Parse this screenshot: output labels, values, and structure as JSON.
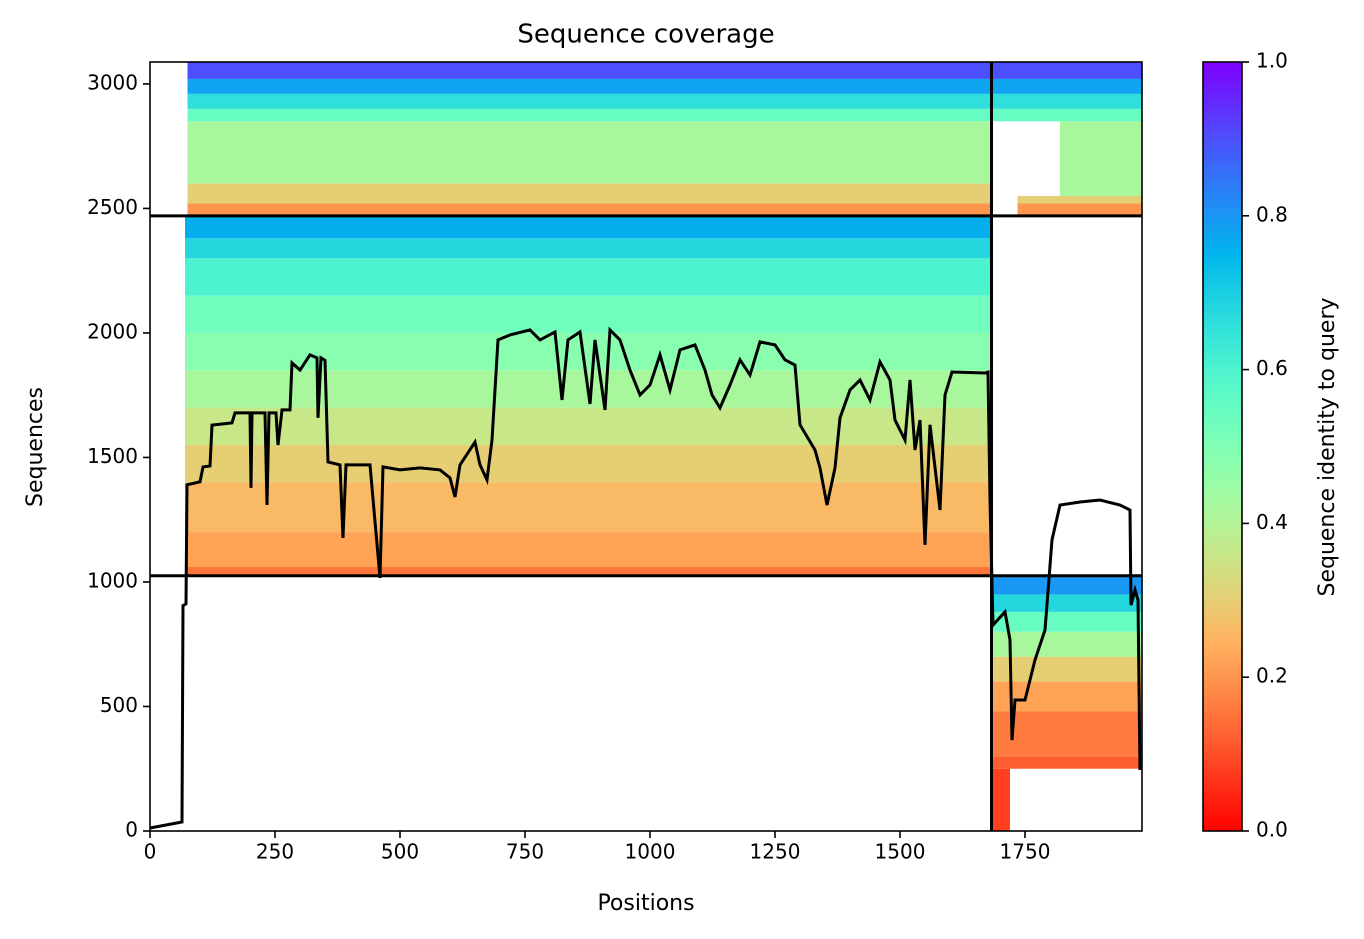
{
  "chart_data": {
    "type": "heatmap",
    "title": "Sequence coverage",
    "xlabel": "Positions",
    "ylabel": "Sequences",
    "colorbar_label": "Sequence identity to query",
    "colormap": "rainbow_r",
    "xlim": [
      0,
      1984
    ],
    "ylim": [
      0,
      3088
    ],
    "xticks": [
      0,
      250,
      500,
      750,
      1000,
      1250,
      1500,
      1750
    ],
    "yticks": [
      0,
      500,
      1000,
      1500,
      2000,
      2500,
      3000
    ],
    "clim": [
      0,
      1
    ],
    "cticks": [
      {
        "value": 0,
        "label": "0.0"
      },
      {
        "value": 0.2,
        "label": "0.2"
      },
      {
        "value": 0.4,
        "label": "0.4"
      },
      {
        "value": 0.6,
        "label": "0.6"
      },
      {
        "value": 0.8,
        "label": "0.8"
      },
      {
        "value": 1,
        "label": "1.0"
      }
    ],
    "dividers": {
      "x": [
        1683
      ],
      "y": [
        1025,
        2470
      ]
    },
    "cells": [
      {
        "x": [
          75,
          1683
        ],
        "y": [
          2470,
          2520
        ],
        "identity": 0.2
      },
      {
        "x": [
          75,
          1683
        ],
        "y": [
          2520,
          2600
        ],
        "identity": 0.3
      },
      {
        "x": [
          75,
          1683
        ],
        "y": [
          2600,
          2850
        ],
        "identity": 0.42
      },
      {
        "x": [
          75,
          1683
        ],
        "y": [
          2850,
          2900
        ],
        "identity": 0.55
      },
      {
        "x": [
          75,
          1683
        ],
        "y": [
          2900,
          2960
        ],
        "identity": 0.66
      },
      {
        "x": [
          75,
          1683
        ],
        "y": [
          2960,
          3020
        ],
        "identity": 0.78
      },
      {
        "x": [
          75,
          1683
        ],
        "y": [
          3020,
          3088
        ],
        "identity": 0.9
      },
      {
        "x": [
          1735,
          1984
        ],
        "y": [
          2470,
          2520
        ],
        "identity": 0.2
      },
      {
        "x": [
          1735,
          1984
        ],
        "y": [
          2520,
          2550
        ],
        "identity": 0.3
      },
      {
        "x": [
          1820,
          1984
        ],
        "y": [
          2550,
          2850
        ],
        "identity": 0.42
      },
      {
        "x": [
          1683,
          1984
        ],
        "y": [
          2850,
          2900
        ],
        "identity": 0.55
      },
      {
        "x": [
          1683,
          1984
        ],
        "y": [
          2900,
          2960
        ],
        "identity": 0.66
      },
      {
        "x": [
          1683,
          1984
        ],
        "y": [
          2960,
          3020
        ],
        "identity": 0.78
      },
      {
        "x": [
          1683,
          1984
        ],
        "y": [
          3020,
          3088
        ],
        "identity": 0.9
      },
      {
        "x": [
          70,
          1683
        ],
        "y": [
          1025,
          1060
        ],
        "identity": 0.15
      },
      {
        "x": [
          70,
          1683
        ],
        "y": [
          1060,
          1200
        ],
        "identity": 0.22
      },
      {
        "x": [
          70,
          1683
        ],
        "y": [
          1200,
          1400
        ],
        "identity": 0.26
      },
      {
        "x": [
          70,
          1683
        ],
        "y": [
          1400,
          1550
        ],
        "identity": 0.3
      },
      {
        "x": [
          70,
          1683
        ],
        "y": [
          1550,
          1700
        ],
        "identity": 0.36
      },
      {
        "x": [
          70,
          1683
        ],
        "y": [
          1700,
          1850
        ],
        "identity": 0.42
      },
      {
        "x": [
          70,
          1683
        ],
        "y": [
          1850,
          2000
        ],
        "identity": 0.48
      },
      {
        "x": [
          70,
          1683
        ],
        "y": [
          2000,
          2150
        ],
        "identity": 0.53
      },
      {
        "x": [
          70,
          1683
        ],
        "y": [
          2150,
          2300
        ],
        "identity": 0.6
      },
      {
        "x": [
          70,
          1683
        ],
        "y": [
          2300,
          2380
        ],
        "identity": 0.68
      },
      {
        "x": [
          70,
          1683
        ],
        "y": [
          2380,
          2470
        ],
        "identity": 0.76
      },
      {
        "x": [
          1683,
          1720
        ],
        "y": [
          0,
          250
        ],
        "identity": 0.08
      },
      {
        "x": [
          1683,
          1984
        ],
        "y": [
          250,
          300
        ],
        "identity": 0.12
      },
      {
        "x": [
          1683,
          1984
        ],
        "y": [
          300,
          480
        ],
        "identity": 0.16
      },
      {
        "x": [
          1683,
          1984
        ],
        "y": [
          480,
          600
        ],
        "identity": 0.22
      },
      {
        "x": [
          1683,
          1984
        ],
        "y": [
          600,
          700
        ],
        "identity": 0.3
      },
      {
        "x": [
          1683,
          1984
        ],
        "y": [
          700,
          800
        ],
        "identity": 0.42
      },
      {
        "x": [
          1683,
          1984
        ],
        "y": [
          800,
          880
        ],
        "identity": 0.55
      },
      {
        "x": [
          1683,
          1984
        ],
        "y": [
          880,
          950
        ],
        "identity": 0.68
      },
      {
        "x": [
          1683,
          1984
        ],
        "y": [
          950,
          1025
        ],
        "identity": 0.8
      }
    ],
    "coverage": {
      "x": [
        0,
        64,
        66,
        72,
        74,
        100,
        106,
        120,
        124,
        164,
        170,
        200,
        202,
        204,
        230,
        234,
        238,
        252,
        256,
        264,
        280,
        284,
        300,
        320,
        334,
        336,
        342,
        350,
        356,
        380,
        386,
        392,
        440,
        460,
        466,
        500,
        540,
        580,
        600,
        610,
        620,
        650,
        660,
        674,
        684,
        696,
        720,
        760,
        780,
        810,
        824,
        836,
        860,
        880,
        890,
        910,
        920,
        940,
        960,
        980,
        1000,
        1020,
        1040,
        1060,
        1090,
        1110,
        1124,
        1140,
        1160,
        1180,
        1200,
        1220,
        1250,
        1270,
        1290,
        1300,
        1330,
        1340,
        1354,
        1370,
        1380,
        1400,
        1420,
        1440,
        1460,
        1480,
        1490,
        1510,
        1520,
        1530,
        1540,
        1550,
        1560,
        1580,
        1590,
        1604,
        1670,
        1676,
        1680,
        1686,
        1710,
        1720,
        1724,
        1730,
        1750,
        1770,
        1790,
        1804,
        1820,
        1860,
        1900,
        1940,
        1960,
        1962,
        1970,
        1976,
        1980
      ],
      "y": [
        12,
        36,
        905,
        912,
        1390,
        1402,
        1462,
        1466,
        1630,
        1639,
        1679,
        1679,
        1378,
        1679,
        1679,
        1309,
        1679,
        1679,
        1550,
        1691,
        1691,
        1880,
        1851,
        1912,
        1900,
        1659,
        1900,
        1890,
        1482,
        1470,
        1177,
        1470,
        1470,
        1016,
        1462,
        1450,
        1458,
        1450,
        1418,
        1341,
        1470,
        1562,
        1470,
        1410,
        1570,
        1972,
        1992,
        2012,
        1972,
        2004,
        1731,
        1972,
        2004,
        1715,
        1972,
        1691,
        2012,
        1972,
        1851,
        1751,
        1791,
        1912,
        1771,
        1932,
        1952,
        1851,
        1751,
        1699,
        1791,
        1892,
        1831,
        1964,
        1952,
        1892,
        1871,
        1631,
        1530,
        1458,
        1309,
        1458,
        1659,
        1771,
        1811,
        1731,
        1884,
        1811,
        1650,
        1570,
        1811,
        1530,
        1650,
        1149,
        1631,
        1289,
        1751,
        1843,
        1839,
        1843,
        1329,
        827,
        880,
        767,
        365,
        526,
        526,
        687,
        807,
        1169,
        1309,
        1321,
        1329,
        1309,
        1289,
        907,
        968,
        928,
        245
      ]
    }
  }
}
